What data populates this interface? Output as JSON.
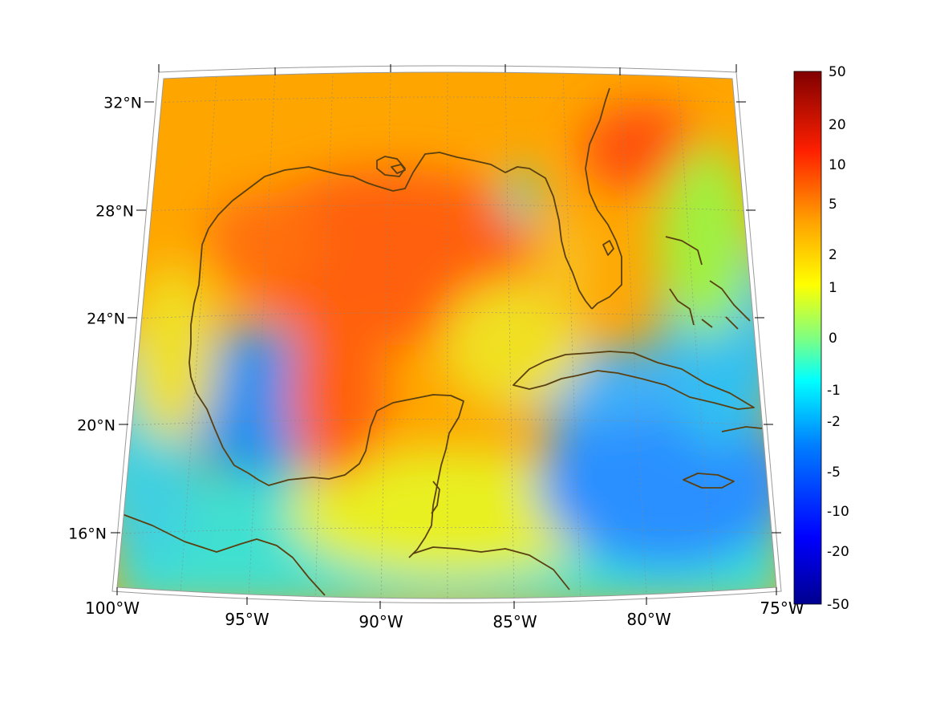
{
  "map": {
    "lat_labels": [
      "32°N",
      "28°N",
      "24°N",
      "20°N",
      "16°N"
    ],
    "lon_labels": [
      "100°W",
      "95°W",
      "90°W",
      "85°W",
      "80°W",
      "75°W"
    ]
  },
  "colorbar": {
    "tick_labels": [
      "50",
      "20",
      "10",
      "5",
      "2",
      "1",
      "0",
      "-1",
      "-2",
      "-5",
      "-10",
      "-20",
      "-50"
    ],
    "colormap": [
      "#00008f",
      "#0000ff",
      "#0080ff",
      "#00ffff",
      "#80ff80",
      "#ffff00",
      "#ff8000",
      "#ff0000",
      "#800000"
    ]
  },
  "colors": {
    "coastline": "#5a4010",
    "field_base": "#ffa500",
    "frame": "#999999"
  }
}
